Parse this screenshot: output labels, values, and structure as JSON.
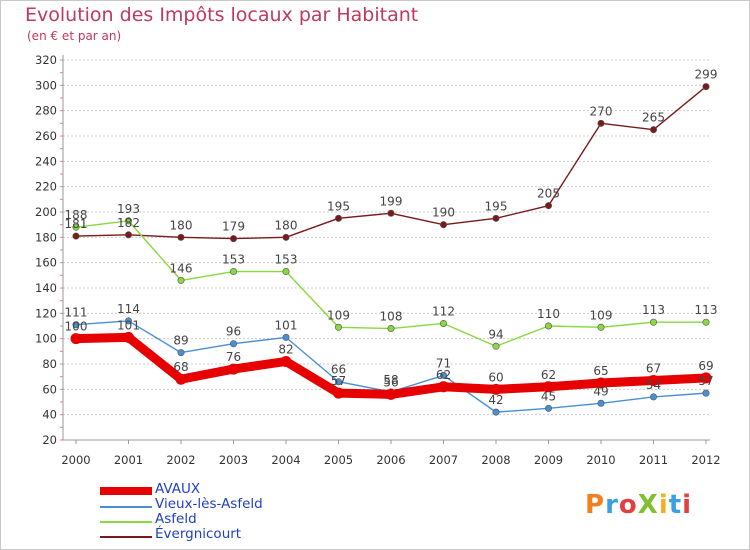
{
  "title": "Evolution des Impôts locaux par Habitant",
  "subtitle": "(en € et par an)",
  "logo": "ProXiti",
  "chart_data": {
    "type": "line",
    "x": [
      "2000",
      "2001",
      "2002",
      "2003",
      "2004",
      "2005",
      "2006",
      "2007",
      "2008",
      "2009",
      "2010",
      "2011",
      "2012"
    ],
    "ylim": [
      20,
      320
    ],
    "yticks": [
      20,
      40,
      60,
      80,
      100,
      120,
      140,
      160,
      180,
      200,
      220,
      240,
      260,
      280,
      300,
      320
    ],
    "grid": "horizontal dashed",
    "legend_position": "bottom-left",
    "series": [
      {
        "name": "AVAUX",
        "color": "#e60000",
        "values": [
          100,
          101,
          68,
          76,
          82,
          57,
          56,
          62,
          60,
          62,
          65,
          67,
          69
        ],
        "labels": [
          "100",
          "101",
          "68",
          "76",
          "82",
          "57",
          "56",
          "62",
          "60",
          "62",
          "65",
          "67",
          "69"
        ]
      },
      {
        "name": "Vieux-lès-Asfeld",
        "color": "#4a8fd4",
        "values": [
          111,
          114,
          89,
          96,
          101,
          66,
          58,
          71,
          42,
          45,
          49,
          54,
          57
        ],
        "labels": [
          "111",
          "114",
          "89",
          "96",
          "101",
          "66",
          "58",
          "71",
          "42",
          "45",
          "49",
          "54",
          "57"
        ]
      },
      {
        "name": "Asfeld",
        "color": "#88d840",
        "values": [
          188,
          193,
          146,
          153,
          153,
          109,
          108,
          112,
          94,
          110,
          109,
          113,
          113
        ],
        "labels": [
          "188",
          "193",
          "146",
          "153",
          "153",
          "109",
          "108",
          "112",
          "94",
          "110",
          "109",
          "113",
          "113"
        ]
      },
      {
        "name": "Évergnicourt",
        "color": "#7a1a1a",
        "values": [
          181,
          182,
          180,
          179,
          180,
          195,
          199,
          190,
          195,
          205,
          270,
          265,
          299
        ],
        "labels": [
          "181",
          "182",
          "180",
          "179",
          "180",
          "195",
          "199",
          "190",
          "195",
          "205",
          "270",
          "265",
          "299"
        ]
      }
    ]
  }
}
